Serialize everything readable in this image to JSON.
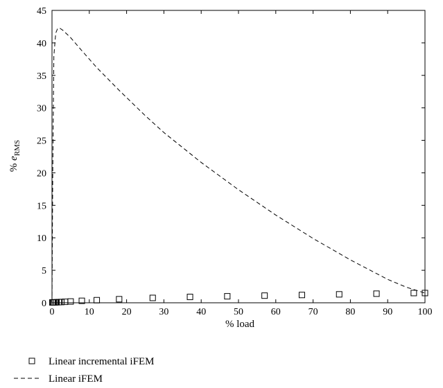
{
  "chart_data": {
    "type": "line",
    "xlabel": "% load",
    "ylabel_prefix": "% ",
    "ylabel_var": "e",
    "ylabel_sub": "RMS",
    "xlim": [
      0,
      100
    ],
    "ylim": [
      0,
      45
    ],
    "xticks": [
      0,
      10,
      20,
      30,
      40,
      50,
      60,
      70,
      80,
      90,
      100
    ],
    "yticks": [
      0,
      5,
      10,
      15,
      20,
      25,
      30,
      35,
      40,
      45
    ],
    "grid": false,
    "legend_position": "below",
    "series": [
      {
        "name": "Linear incremental iFEM",
        "style": "square-markers",
        "x": [
          0.1,
          0.3,
          0.5,
          0.8,
          1.2,
          1.8,
          2.5,
          3.5,
          5,
          8,
          12,
          18,
          27,
          37,
          47,
          57,
          67,
          77,
          87,
          97,
          100
        ],
        "y": [
          0.05,
          0.05,
          0.06,
          0.07,
          0.08,
          0.1,
          0.12,
          0.15,
          0.2,
          0.3,
          0.4,
          0.55,
          0.75,
          0.9,
          1.0,
          1.1,
          1.2,
          1.3,
          1.4,
          1.5,
          1.5
        ]
      },
      {
        "name": "Linear iFEM",
        "style": "dashed",
        "x": [
          0,
          0.2,
          0.5,
          1,
          1.5,
          2,
          3,
          5,
          8,
          12,
          18,
          25,
          30,
          40,
          50,
          60,
          70,
          80,
          90,
          95,
          100
        ],
        "y": [
          0,
          20,
          38,
          41.5,
          42.2,
          42.3,
          41.9,
          40.8,
          38.8,
          36.2,
          32.7,
          28.8,
          26.2,
          21.6,
          17.4,
          13.5,
          9.9,
          6.6,
          3.6,
          2.4,
          1.5
        ]
      }
    ]
  }
}
